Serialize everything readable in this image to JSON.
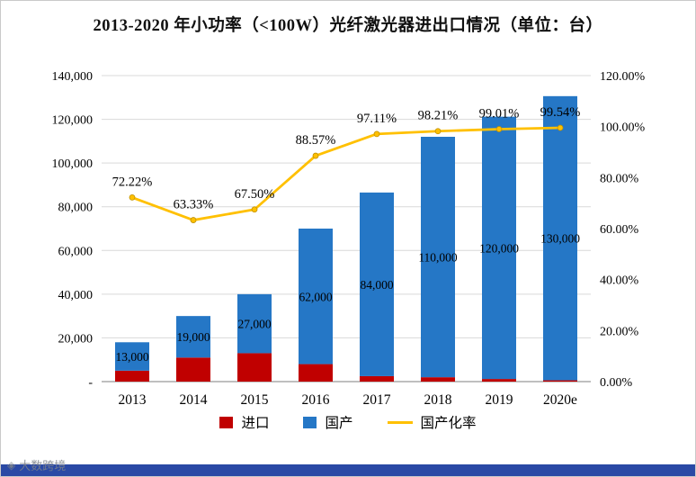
{
  "title": "2013-2020 年小功率（<100W）光纤激光器进出口情况（单位：台）",
  "watermark": "大数跨境",
  "footer_bar_color": "#2a49a5",
  "legend": {
    "items": [
      {
        "label": "进口",
        "color": "#C00000",
        "swatch": "square"
      },
      {
        "label": "国产",
        "color": "#2577C6",
        "swatch": "square"
      },
      {
        "label": "国产化率",
        "color": "#FFC000",
        "swatch": "line"
      }
    ]
  },
  "chart_data": {
    "type": "bar+line",
    "title": "2013-2020 年小功率（<100W）光纤激光器进出口情况（单位：台）",
    "categories": [
      "2013",
      "2014",
      "2015",
      "2016",
      "2017",
      "2018",
      "2019",
      "2020e"
    ],
    "series": [
      {
        "name": "进口",
        "type": "bar",
        "stack": true,
        "color": "#C00000",
        "values": [
          5000,
          11000,
          13000,
          8000,
          2500,
          2000,
          1200,
          600
        ]
      },
      {
        "name": "国产",
        "type": "bar",
        "stack": true,
        "color": "#2577C6",
        "values": [
          13000,
          19000,
          27000,
          62000,
          84000,
          110000,
          120000,
          130000
        ],
        "data_labels": [
          "13,000",
          "19,000",
          "27,000",
          "62,000",
          "84,000",
          "110,000",
          "120,000",
          "130,000"
        ]
      },
      {
        "name": "国产化率",
        "type": "line",
        "axis": "right",
        "color": "#FFC000",
        "values": [
          72.22,
          63.33,
          67.5,
          88.57,
          97.11,
          98.21,
          99.01,
          99.54
        ],
        "data_labels": [
          "72.22%",
          "63.33%",
          "67.50%",
          "88.57%",
          "97.11%",
          "98.21%",
          "99.01%",
          "99.54%"
        ]
      }
    ],
    "left_axis": {
      "min": 0,
      "max": 140000,
      "step": 20000,
      "tick_labels": [
        "-",
        "20,000",
        "40,000",
        "60,000",
        "80,000",
        "100,000",
        "120,000",
        "140,000"
      ]
    },
    "right_axis": {
      "min": 0,
      "max": 120,
      "step": 20,
      "tick_labels": [
        "0.00%",
        "20.00%",
        "40.00%",
        "60.00%",
        "80.00%",
        "100.00%",
        "120.00%"
      ]
    },
    "grid": true,
    "legend_position": "bottom"
  }
}
